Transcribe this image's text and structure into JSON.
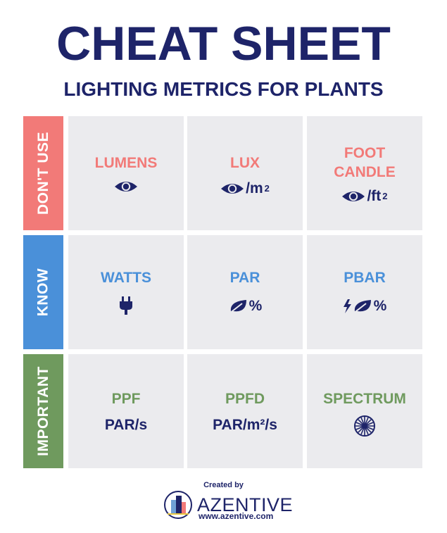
{
  "header": {
    "title": "CHEAT SHEET",
    "subtitle": "LIGHTING METRICS FOR PLANTS"
  },
  "rows": [
    {
      "label": "DON'T USE",
      "color": "#f27a78"
    },
    {
      "label": "KNOW",
      "color": "#4a90d9"
    },
    {
      "label": "IMPORTANT",
      "color": "#6f9a5e"
    }
  ],
  "cells": {
    "lumens": {
      "metric": "LUMENS",
      "icon": "eye-icon"
    },
    "lux": {
      "metric": "LUX",
      "unit": "/m",
      "unit_sup": "2",
      "icon": "eye-icon"
    },
    "footcandle": {
      "metric_line1": "FOOT",
      "metric_line2": "CANDLE",
      "unit": "/ft",
      "unit_sup": "2",
      "icon": "eye-icon"
    },
    "watts": {
      "metric": "WATTS",
      "icon": "plug-icon"
    },
    "par": {
      "metric": "PAR",
      "unit": "%",
      "icon": "leaf-icon"
    },
    "pbar": {
      "metric": "PBAR",
      "unit": "%",
      "icon": "bolt-leaf-icon"
    },
    "ppf": {
      "metric": "PPF",
      "unit": "PAR/s"
    },
    "ppfd": {
      "metric": "PPFD",
      "unit": "PAR/m²/s"
    },
    "spectrum": {
      "metric": "SPECTRUM",
      "icon": "spectrum-wheel-icon"
    }
  },
  "footer": {
    "created_by": "Created by",
    "brand": "AZENTIVE",
    "url": "www.azentive.com",
    "logo": "azentive-logo"
  }
}
